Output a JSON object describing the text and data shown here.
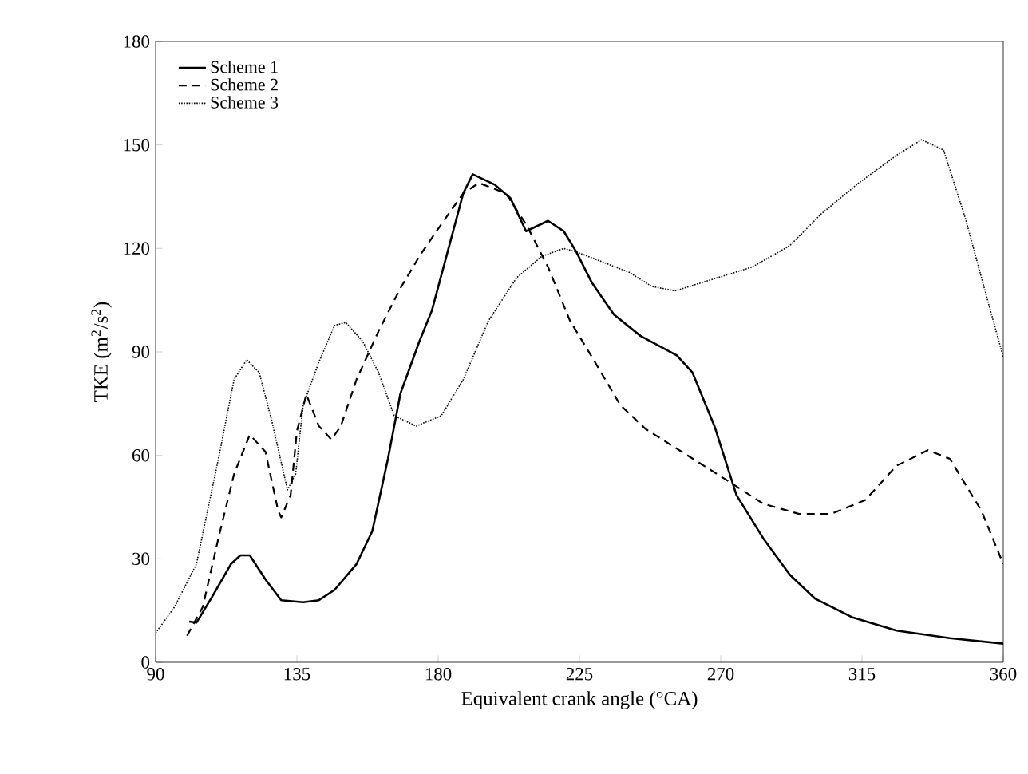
{
  "chart_data": {
    "type": "line",
    "xlabel": "Equivalent crank angle (°CA)",
    "ylabel": "TKE  (m$^{2}$/s$^{2}$)",
    "xlim": [
      90,
      360
    ],
    "ylim": [
      0,
      180
    ],
    "xticks": [
      90,
      135,
      180,
      225,
      270,
      315,
      360
    ],
    "yticks": [
      0,
      30,
      60,
      90,
      120,
      150,
      180
    ],
    "grid": false,
    "legend": "top left",
    "marker": "none",
    "series": [
      {
        "name": "Scheme 1",
        "color": "#000000",
        "line_style": "solid",
        "x": [
          100.7,
          103,
          108,
          114,
          117,
          120,
          125,
          130,
          137,
          142,
          147,
          154,
          159,
          164,
          168,
          174,
          178,
          183,
          188,
          191,
          198,
          203,
          208,
          215,
          220,
          224,
          229,
          236,
          244.5,
          256,
          261,
          268,
          275,
          283.5,
          292,
          300,
          312,
          326,
          343,
          360
        ],
        "values": [
          11.8,
          11.5,
          19,
          28.5,
          31,
          31,
          24,
          18,
          17.4,
          18,
          21,
          28.5,
          38,
          59,
          78,
          93,
          102,
          119,
          136,
          141.5,
          138.5,
          134.6,
          125,
          128,
          125,
          119,
          110,
          100.8,
          94.6,
          89,
          84,
          68.5,
          48.5,
          36,
          25.4,
          18.5,
          13,
          9.2,
          7,
          5.4
        ]
      },
      {
        "name": "Scheme 2",
        "color": "#000000",
        "line_style": "dashed",
        "x": [
          100,
          105,
          110,
          115,
          120,
          125,
          129,
          130,
          133,
          135,
          138,
          142,
          146,
          149,
          154,
          161,
          168,
          174,
          181,
          188,
          193,
          201.5,
          208,
          215,
          222,
          229,
          238,
          246,
          258,
          271.6,
          283.5,
          295,
          305,
          316,
          326,
          336,
          343,
          353,
          360
        ],
        "values": [
          7.7,
          16,
          36,
          54.6,
          66,
          61,
          44,
          42,
          48.5,
          67,
          77.7,
          68.5,
          64.6,
          68.5,
          82,
          96,
          108.5,
          117.7,
          127,
          136,
          139,
          136,
          127,
          114.6,
          99,
          88.5,
          74.6,
          67.7,
          60.8,
          53,
          46,
          43,
          43,
          47,
          57,
          61.5,
          59,
          44,
          28.5
        ]
      },
      {
        "name": "Scheme 3",
        "color": "#000000",
        "line_style": "dotted",
        "x": [
          90,
          96,
          103,
          110,
          115,
          119,
          123,
          127,
          132,
          134.6,
          137,
          142,
          147,
          150.6,
          156,
          161,
          166,
          173,
          181,
          188,
          196,
          205,
          213,
          220,
          224,
          232.6,
          241,
          248,
          255.5,
          266.5,
          280,
          292,
          302,
          314,
          326,
          334,
          341,
          348,
          355,
          360
        ],
        "values": [
          8.5,
          16,
          28.5,
          59,
          82,
          87.7,
          84,
          70,
          50,
          54.6,
          74.6,
          87,
          97.7,
          98.5,
          93,
          84,
          71.5,
          68.5,
          71.5,
          82,
          99,
          111.5,
          117.7,
          120,
          119,
          116,
          113,
          109,
          107.7,
          110.8,
          114.6,
          120.8,
          130,
          139,
          147,
          151.5,
          148.5,
          128.5,
          105,
          88.5
        ]
      }
    ]
  }
}
